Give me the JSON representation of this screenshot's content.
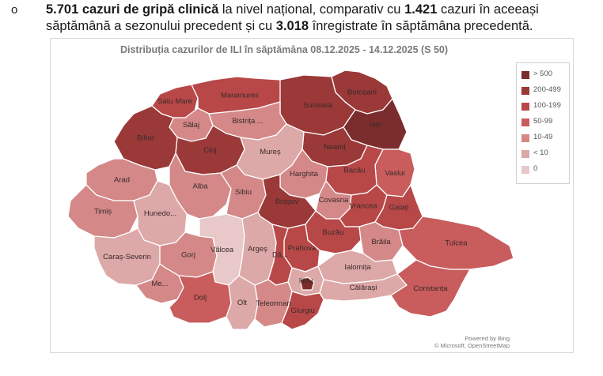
{
  "bullet": {
    "symbol": "o",
    "bold_1": "5.701 cazuri de gripă clinică",
    "text_1": " la nivel național, comparativ cu ",
    "bold_2": "1.421",
    "text_2": " cazuri în aceeași săptămână a sezonului precedent și cu ",
    "bold_3": "3.018",
    "text_3": " înregistrate în săptămâna precedentă."
  },
  "map": {
    "title": "Distribuția cazurilor de ILI în săptămâna 08.12.2025 - 14.12.2025 (S 50)",
    "legend": [
      {
        "label": "> 500",
        "color": "#7b2d2d"
      },
      {
        "label": "200-499",
        "color": "#9b3838"
      },
      {
        "label": "100-199",
        "color": "#b84848"
      },
      {
        "label": "50-99",
        "color": "#c95c5c"
      },
      {
        "label": "10-49",
        "color": "#d48888"
      },
      {
        "label": "< 10",
        "color": "#dda8a8"
      },
      {
        "label": "0",
        "color": "#e8c8c8"
      }
    ],
    "credit_1": "Powered by Bing",
    "credit_2": "© Microsoft, OpenStreetMap",
    "counties": [
      {
        "id": "satu-mare",
        "label": "Satu Mare",
        "level": 2
      },
      {
        "id": "maramures",
        "label": "Maramures",
        "level": 2
      },
      {
        "id": "botosani",
        "label": "Botoșani",
        "level": 1
      },
      {
        "id": "suceava",
        "label": "Suceava",
        "level": 1
      },
      {
        "id": "salaj",
        "label": "Sălaj",
        "level": 4
      },
      {
        "id": "bistrita",
        "label": "Bistrița ...",
        "level": 4
      },
      {
        "id": "iasi",
        "label": "Iași",
        "level": 0
      },
      {
        "id": "bihor",
        "label": "Bihor",
        "level": 1
      },
      {
        "id": "cluj",
        "label": "Cluj",
        "level": 1
      },
      {
        "id": "neamt",
        "label": "Neamț",
        "level": 1
      },
      {
        "id": "mures",
        "label": "Mureș",
        "level": 5
      },
      {
        "id": "harghita",
        "label": "Harghita",
        "level": 4
      },
      {
        "id": "vaslui",
        "label": "Vaslui",
        "level": 3
      },
      {
        "id": "bacau",
        "label": "Bacău",
        "level": 2
      },
      {
        "id": "arad",
        "label": "Arad",
        "level": 4
      },
      {
        "id": "alba",
        "label": "Alba",
        "level": 4
      },
      {
        "id": "covasna",
        "label": "Covasna",
        "level": 4
      },
      {
        "id": "timis",
        "label": "Timiș",
        "level": 4
      },
      {
        "id": "hunedoara",
        "label": "Hunedo...",
        "level": 5
      },
      {
        "id": "sibiu",
        "label": "Sibiu",
        "level": 4
      },
      {
        "id": "brasov",
        "label": "Brașov",
        "level": 1
      },
      {
        "id": "vrancea",
        "label": "Vrancea",
        "level": 2
      },
      {
        "id": "galati",
        "label": "Galați",
        "level": 2
      },
      {
        "id": "caras",
        "label": "Caraș-Severin",
        "level": 5
      },
      {
        "id": "buzau",
        "label": "Buzău",
        "level": 2
      },
      {
        "id": "braila",
        "label": "Brăila",
        "level": 4
      },
      {
        "id": "tulcea",
        "label": "Tulcea",
        "level": 3
      },
      {
        "id": "gorj",
        "label": "Gorj",
        "level": 4
      },
      {
        "id": "valcea",
        "label": "Vâlcea",
        "level": 6
      },
      {
        "id": "arges",
        "label": "Argeș",
        "level": 5
      },
      {
        "id": "prahova",
        "label": "Prahova",
        "level": 2
      },
      {
        "id": "dambovita",
        "label": "Dâ...",
        "level": 2
      },
      {
        "id": "ilfov",
        "label": "Ilfov",
        "level": 5
      },
      {
        "id": "bucuresti",
        "label": "",
        "level": 0
      },
      {
        "id": "ialomita",
        "label": "Ialomița",
        "level": 5
      },
      {
        "id": "mehedinti",
        "label": "Me...",
        "level": 4
      },
      {
        "id": "calarasi",
        "label": "Călărași",
        "level": 5
      },
      {
        "id": "dolj",
        "label": "Dolj",
        "level": 3
      },
      {
        "id": "olt",
        "label": "Olt",
        "level": 5
      },
      {
        "id": "teleorman",
        "label": "Teleorman",
        "level": 4
      },
      {
        "id": "giurgiu",
        "label": "Giurgiu",
        "level": 2
      },
      {
        "id": "constanta",
        "label": "Constanța",
        "level": 3
      }
    ]
  }
}
